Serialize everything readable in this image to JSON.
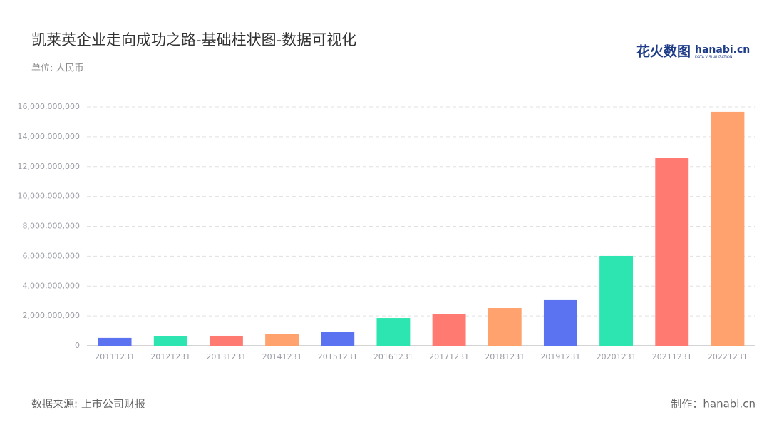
{
  "chart_data": {
    "type": "bar",
    "title": "凯莱英企业走向成功之路-基础柱状图-数据可视化",
    "subtitle": "单位: 人民币",
    "source": "数据来源: 上市公司财报",
    "credit": "制作：hanabi.cn",
    "logo": {
      "name": "花火数图",
      "site": "hanabi.cn",
      "tagline": "DATA VISUALIZATION"
    },
    "categories": [
      "20111231",
      "20121231",
      "20131231",
      "20141231",
      "20151231",
      "20161231",
      "20171231",
      "20181231",
      "20191231",
      "20201231",
      "20211231",
      "20221231"
    ],
    "values": [
      530000000,
      620000000,
      670000000,
      810000000,
      950000000,
      1860000000,
      2150000000,
      2530000000,
      3060000000,
      6020000000,
      12600000000,
      15670000000
    ],
    "colors": [
      "#5b73f0",
      "#2de5b0",
      "#ff7b72",
      "#ffa26e",
      "#5b73f0",
      "#2de5b0",
      "#ff7b72",
      "#ffa26e",
      "#5b73f0",
      "#2de5b0",
      "#ff7b72",
      "#ffa26e"
    ],
    "ylim": [
      0,
      16000000000
    ],
    "yticks": [
      0,
      {
        "value": 2000000000,
        "label": "2,000,000,000"
      },
      {
        "value": 4000000000,
        "label": "4,000,000,000"
      },
      {
        "value": 6000000000,
        "label": "6,000,000,000"
      },
      {
        "value": 8000000000,
        "label": "8,000,000,000"
      },
      {
        "value": 10000000000,
        "label": "10,000,000,000"
      },
      {
        "value": 12000000000,
        "label": "12,000,000,000"
      },
      {
        "value": 14000000000,
        "label": "14,000,000,000"
      },
      {
        "value": 16000000000,
        "label": "16,000,000,000"
      }
    ],
    "grid": true
  }
}
